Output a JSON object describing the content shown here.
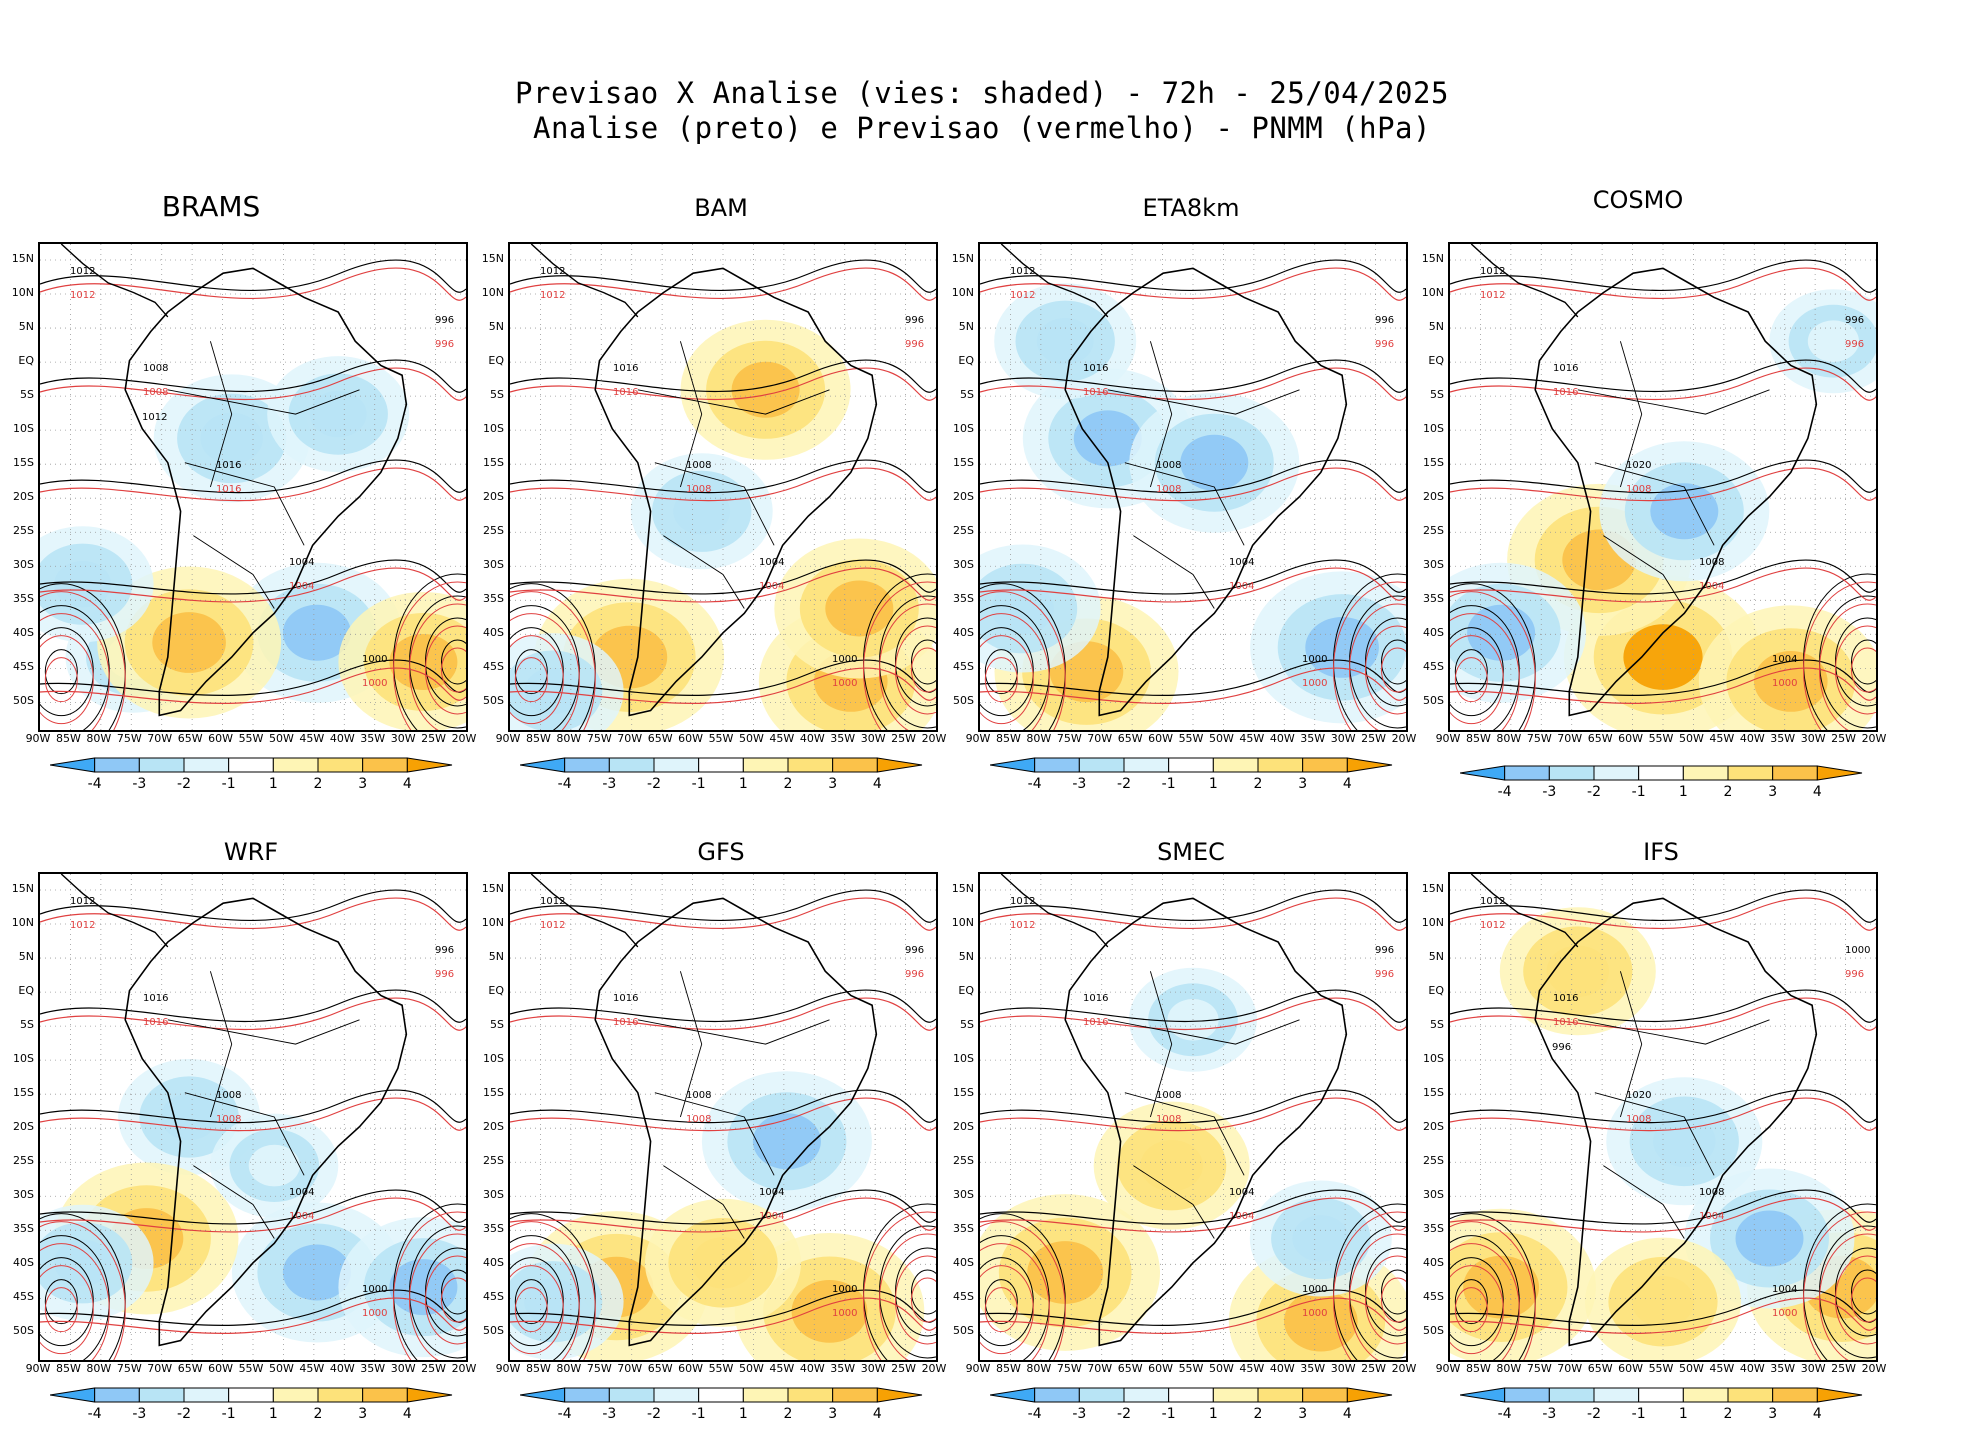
{
  "header": {
    "title_line1": "Previsao X Analise (vies: shaded) - 72h - 25/04/2025",
    "title_line2": "Analise (preto) e Previsao (vermelho) - PNMM (hPa)"
  },
  "panels": [
    {
      "title": "BRAMS",
      "bias": [
        [
          0.22,
          0.85,
          -1.3
        ],
        [
          0.45,
          0.4,
          -2.0
        ],
        [
          0.65,
          0.8,
          -2.5
        ],
        [
          0.35,
          0.82,
          3.0
        ],
        [
          0.9,
          0.86,
          2.5
        ],
        [
          0.1,
          0.7,
          -1.5
        ],
        [
          0.7,
          0.35,
          -1.5
        ]
      ],
      "analysis_labels": [
        "1012",
        "1008",
        "1016",
        "1004",
        "1000",
        "996",
        "1012"
      ],
      "forecast_labels": [
        "1012",
        "1008",
        "1016",
        "1004",
        "1000",
        "996"
      ]
    },
    {
      "title": "BAM",
      "bias": [
        [
          0.28,
          0.85,
          3.2
        ],
        [
          0.8,
          0.9,
          3.0
        ],
        [
          0.6,
          0.3,
          2.5
        ],
        [
          0.82,
          0.75,
          2.5
        ],
        [
          0.45,
          0.55,
          -1.5
        ],
        [
          0.1,
          0.92,
          -1.5
        ]
      ],
      "analysis_labels": [
        "1012",
        "1016",
        "1008",
        "1004",
        "1000",
        "996"
      ],
      "forecast_labels": [
        "1012",
        "1016",
        "1008",
        "1004",
        "1000",
        "996"
      ]
    },
    {
      "title": "ETA8km",
      "bias": [
        [
          0.3,
          0.4,
          -2.5
        ],
        [
          0.55,
          0.45,
          -2.5
        ],
        [
          0.2,
          0.2,
          -1.5
        ],
        [
          0.85,
          0.83,
          -3.0
        ],
        [
          0.25,
          0.88,
          3.0
        ],
        [
          0.1,
          0.75,
          -2.0
        ]
      ],
      "analysis_labels": [
        "1012",
        "1016",
        "1008",
        "1004",
        "1000",
        "996"
      ],
      "forecast_labels": [
        "1012",
        "1016",
        "1008",
        "1004",
        "1000",
        "996"
      ]
    },
    {
      "title": "COSMO",
      "bias": [
        [
          0.5,
          0.85,
          3.5
        ],
        [
          0.8,
          0.9,
          3.0
        ],
        [
          0.35,
          0.65,
          3.0
        ],
        [
          0.55,
          0.55,
          -2.5
        ],
        [
          0.12,
          0.8,
          -2.5
        ],
        [
          0.9,
          0.2,
          -1.0
        ]
      ],
      "analysis_labels": [
        "1012",
        "1016",
        "1020",
        "1008",
        "1004",
        "996"
      ],
      "forecast_labels": [
        "1012",
        "1016",
        "1008",
        "1004",
        "1000",
        "996"
      ]
    },
    {
      "title": "WRF",
      "bias": [
        [
          0.65,
          0.82,
          -2.5
        ],
        [
          0.9,
          0.85,
          -2.5
        ],
        [
          0.35,
          0.5,
          -1.5
        ],
        [
          0.25,
          0.75,
          3.0
        ],
        [
          0.1,
          0.8,
          -1.5
        ],
        [
          0.55,
          0.6,
          -1.0
        ]
      ],
      "analysis_labels": [
        "1012",
        "1016",
        "1008",
        "1004",
        "1000",
        "996"
      ],
      "forecast_labels": [
        "1012",
        "1016",
        "1008",
        "1004",
        "1000",
        "996"
      ]
    },
    {
      "title": "GFS",
      "bias": [
        [
          0.75,
          0.9,
          3.2
        ],
        [
          0.25,
          0.85,
          3.0
        ],
        [
          0.65,
          0.55,
          -2.5
        ],
        [
          0.5,
          0.8,
          2.0
        ],
        [
          0.1,
          0.88,
          -1.5
        ]
      ],
      "analysis_labels": [
        "1012",
        "1016",
        "1008",
        "1004",
        "1000",
        "996"
      ],
      "forecast_labels": [
        "1012",
        "1016",
        "1008",
        "1004",
        "1000",
        "996"
      ]
    },
    {
      "title": "SMEC",
      "bias": [
        [
          0.2,
          0.82,
          3.2
        ],
        [
          0.8,
          0.92,
          3.0
        ],
        [
          0.45,
          0.6,
          2.0
        ],
        [
          0.8,
          0.75,
          -1.5
        ],
        [
          0.5,
          0.3,
          -1.0
        ]
      ],
      "analysis_labels": [
        "1012",
        "1016",
        "1008",
        "1004",
        "1000",
        "996"
      ],
      "forecast_labels": [
        "1012",
        "1016",
        "1008",
        "1004",
        "1000",
        "996"
      ]
    },
    {
      "title": "IFS",
      "bias": [
        [
          0.12,
          0.85,
          3.2
        ],
        [
          0.92,
          0.85,
          3.2
        ],
        [
          0.75,
          0.75,
          -2.5
        ],
        [
          0.55,
          0.55,
          -2.0
        ],
        [
          0.3,
          0.2,
          2.0
        ],
        [
          0.5,
          0.88,
          2.0
        ]
      ],
      "analysis_labels": [
        "1012",
        "1016",
        "1020",
        "1008",
        "1004",
        "1000",
        "996"
      ],
      "forecast_labels": [
        "1012",
        "1016",
        "1008",
        "1004",
        "1000",
        "996"
      ]
    }
  ],
  "axes": {
    "lat_labels": [
      "15N",
      "10N",
      "5N",
      "EQ",
      "5S",
      "10S",
      "15S",
      "20S",
      "25S",
      "30S",
      "35S",
      "40S",
      "45S",
      "50S"
    ],
    "lon_labels": [
      "90W",
      "85W",
      "80W",
      "75W",
      "70W",
      "65W",
      "60W",
      "55W",
      "50W",
      "45W",
      "40W",
      "35W",
      "30W",
      "25W",
      "20W"
    ]
  },
  "colorbar": {
    "labels": [
      "-4",
      "-3",
      "-2",
      "-1",
      "1",
      "2",
      "3",
      "4"
    ],
    "colors": [
      "#3fa9f5",
      "#8fc8f6",
      "#b8e4f5",
      "#dff4fb",
      "#ffffff",
      "#fef5b5",
      "#fde27a",
      "#fbc24a",
      "#f7a104"
    ]
  }
}
